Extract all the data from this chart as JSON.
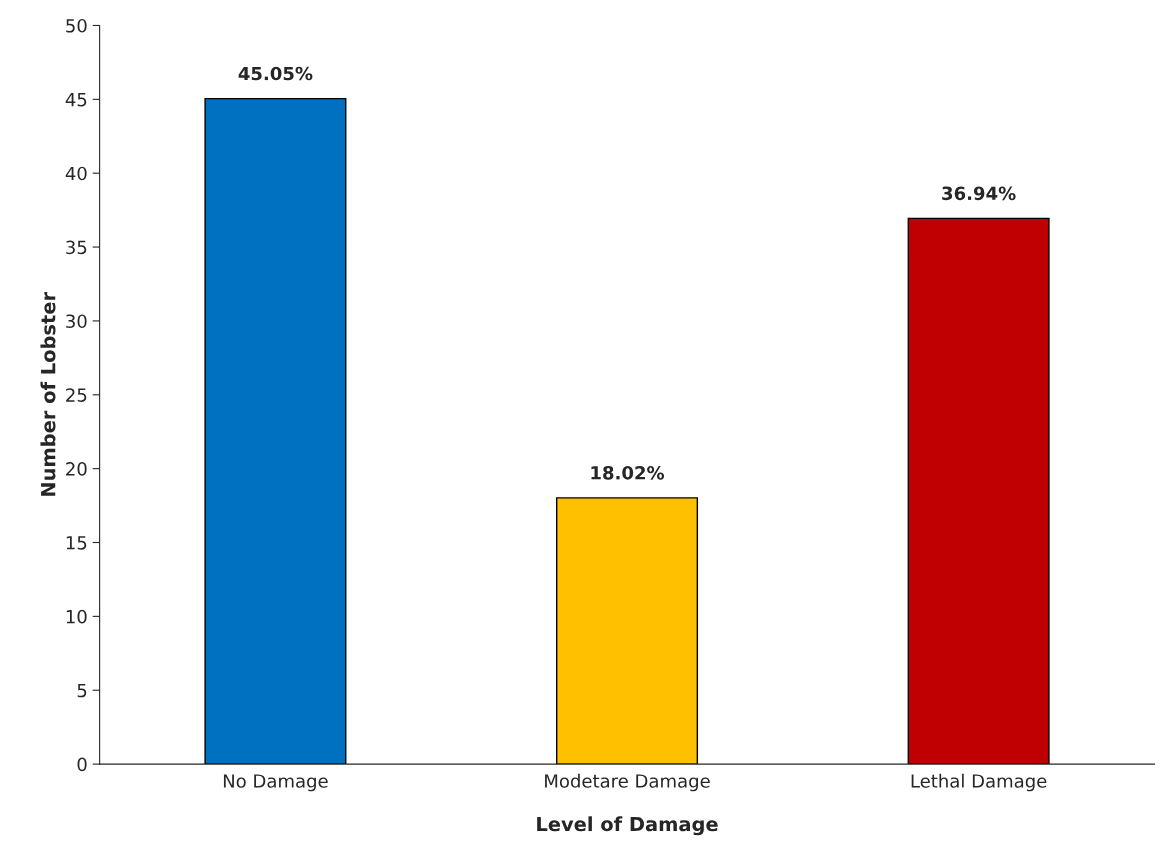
{
  "chart_data": {
    "type": "bar",
    "xlabel": "Level of Damage",
    "ylabel": "Number of Lobster",
    "categories": [
      "No Damage",
      "Modetare Damage",
      "Lethal Damage"
    ],
    "values": [
      45.05,
      18.02,
      36.94
    ],
    "colors": [
      "#0070c0",
      "#ffc000",
      "#c00000"
    ],
    "value_labels": [
      "45.05%",
      "18.02%",
      "36.94%"
    ],
    "ylim": [
      0,
      50
    ],
    "yticks": [
      0,
      5,
      10,
      15,
      20,
      25,
      30,
      35,
      40,
      45,
      50
    ],
    "grid": false,
    "legend": false
  }
}
